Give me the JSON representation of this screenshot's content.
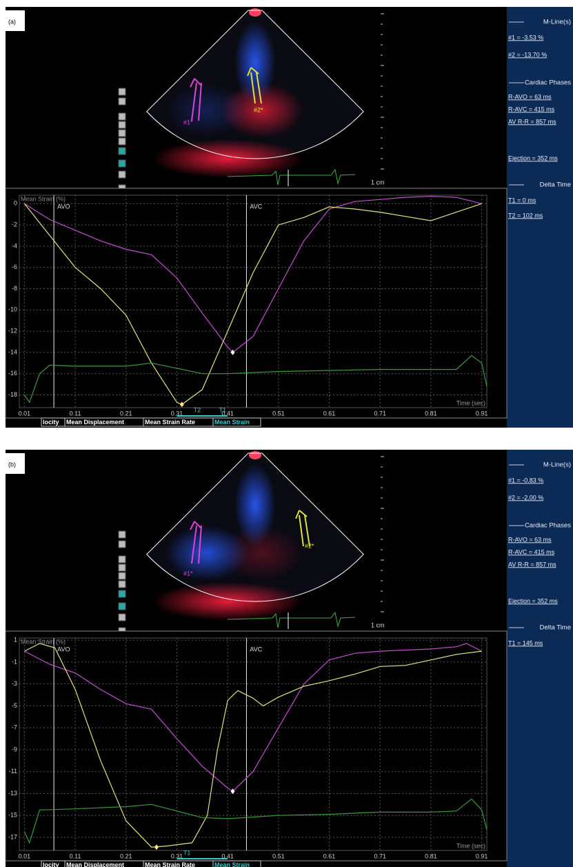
{
  "panels": [
    {
      "label": "(a)",
      "scale_label": "1 cm",
      "arrow_labels": [
        "#1*",
        "#2*"
      ],
      "tabs": [
        "locity",
        "Mean Displacement",
        "Mean Strain Rate",
        "Mean Strain"
      ],
      "sidebar": [
        {
          "heading": "M-Line(s)",
          "items": [
            "#1 = -3.53 %",
            "#2 = -13.70 %"
          ]
        },
        {
          "heading": "Cardiac Phases",
          "items": [
            "R-AVO = 63 ms",
            "R-AVC = 415 ms",
            "AV R-R = 857 ms",
            "Ejection = 352 ms"
          ]
        },
        {
          "heading": "Delta Time",
          "items": [
            "T1 = 0 ms",
            "T2 = 102 ms"
          ]
        }
      ]
    },
    {
      "label": "(b)",
      "scale_label": "1 cm",
      "arrow_labels": [
        "#1*",
        "#2*"
      ],
      "tabs": [
        "locity",
        "Mean Displacement",
        "Mean Strain Rate",
        "Mean Strain"
      ],
      "sidebar": [
        {
          "heading": "M-Line(s)",
          "items": [
            "#1 = -0.83 %",
            "#2 = -2.00 %"
          ]
        },
        {
          "heading": "Cardiac Phases",
          "items": [
            "R-AVO = 63 ms",
            "R-AVC = 415 ms",
            "AV R-R = 857 ms",
            "Ejection = 352 ms"
          ]
        },
        {
          "heading": "Delta Time",
          "items": [
            "T1 = 145 ms"
          ]
        }
      ]
    }
  ],
  "chart_data": [
    {
      "type": "line",
      "ylabel": "Mean Strain (%)",
      "xlabel": "Time (sec)",
      "xlim": [
        0,
        0.92
      ],
      "ylim": [
        -19.2,
        0.8
      ],
      "xticks": [
        0.01,
        0.11,
        0.21,
        0.31,
        0.41,
        0.51,
        0.61,
        0.71,
        0.81,
        0.91
      ],
      "yticks": [
        0,
        -2,
        -4,
        -6,
        -8,
        -10,
        -12,
        -14,
        -16,
        -18
      ],
      "grid": true,
      "events": [
        {
          "label": "AVO",
          "x": 0.068
        },
        {
          "label": "AVC",
          "x": 0.447
        }
      ],
      "cursors": [
        {
          "label": "T2",
          "x": 0.35
        },
        {
          "label": "T1",
          "x": 0.4
        }
      ],
      "series": [
        {
          "color": "#c24fcf",
          "x": [
            0.01,
            0.06,
            0.11,
            0.16,
            0.21,
            0.26,
            0.31,
            0.36,
            0.41,
            0.42,
            0.46,
            0.51,
            0.56,
            0.61,
            0.66,
            0.71,
            0.76,
            0.81,
            0.86,
            0.91
          ],
          "values": [
            0,
            -1.5,
            -2.5,
            -3.5,
            -4.3,
            -4.8,
            -7,
            -10.3,
            -13.5,
            -14,
            -12.5,
            -8,
            -3.5,
            -0.5,
            0.2,
            0.4,
            0.6,
            0.7,
            0.6,
            0
          ]
        },
        {
          "color": "#e4e47c",
          "x": [
            0.01,
            0.06,
            0.11,
            0.16,
            0.21,
            0.26,
            0.31,
            0.32,
            0.36,
            0.41,
            0.46,
            0.51,
            0.56,
            0.61,
            0.66,
            0.71,
            0.76,
            0.81,
            0.86,
            0.91
          ],
          "values": [
            0,
            -3,
            -6,
            -8,
            -10.5,
            -15,
            -18.7,
            -18.9,
            -17.5,
            -12,
            -6.5,
            -2,
            -1.3,
            -0.3,
            -0.5,
            -0.8,
            -1.2,
            -1.6,
            -0.8,
            0
          ]
        },
        {
          "color": "#3d9a3d",
          "x": [
            0.01,
            0.02,
            0.04,
            0.06,
            0.11,
            0.21,
            0.26,
            0.31,
            0.36,
            0.41,
            0.51,
            0.61,
            0.71,
            0.81,
            0.86,
            0.89,
            0.91,
            0.92
          ],
          "values": [
            -18,
            -18.7,
            -16,
            -15.2,
            -15.3,
            -15.3,
            -15,
            -15.5,
            -16,
            -16,
            -15.8,
            -15.7,
            -15.6,
            -15.6,
            -15.6,
            -14.3,
            -15,
            -17.2
          ]
        }
      ],
      "markers": [
        {
          "x": 0.42,
          "y": -14
        },
        {
          "x": 0.32,
          "y": -18.9
        }
      ]
    },
    {
      "type": "line",
      "ylabel": "Mean Strain (%)",
      "xlabel": "Time (sec)",
      "xlim": [
        0,
        0.92
      ],
      "ylim": [
        -18.2,
        1.2
      ],
      "xticks": [
        0.01,
        0.11,
        0.21,
        0.31,
        0.41,
        0.51,
        0.61,
        0.71,
        0.81,
        0.91
      ],
      "yticks": [
        1,
        -1,
        -3,
        -5,
        -7,
        -9,
        -11,
        -13,
        -15,
        -17
      ],
      "grid": true,
      "events": [
        {
          "label": "AVO",
          "x": 0.068
        },
        {
          "label": "AVC",
          "x": 0.447
        }
      ],
      "cursors": [
        {
          "label": "T1",
          "x": 0.33
        }
      ],
      "series": [
        {
          "color": "#c24fcf",
          "x": [
            0.01,
            0.06,
            0.11,
            0.16,
            0.21,
            0.26,
            0.31,
            0.36,
            0.41,
            0.42,
            0.46,
            0.51,
            0.56,
            0.61,
            0.66,
            0.71,
            0.76,
            0.81,
            0.86,
            0.88,
            0.91
          ],
          "values": [
            0,
            -1.2,
            -2,
            -3.5,
            -4.8,
            -5.3,
            -8,
            -10.5,
            -12.5,
            -12.8,
            -11,
            -7,
            -3,
            -0.8,
            -0.2,
            0,
            0.1,
            0.2,
            0.4,
            0.7,
            0
          ]
        },
        {
          "color": "#e4e47c",
          "x": [
            0.01,
            0.04,
            0.07,
            0.11,
            0.16,
            0.21,
            0.26,
            0.29,
            0.34,
            0.37,
            0.39,
            0.41,
            0.43,
            0.46,
            0.48,
            0.51,
            0.56,
            0.61,
            0.66,
            0.71,
            0.76,
            0.81,
            0.86,
            0.91
          ],
          "values": [
            0,
            0.7,
            0.3,
            -3.5,
            -10,
            -15.5,
            -17.9,
            -17.8,
            -17.5,
            -15,
            -9,
            -4.5,
            -3.6,
            -4.3,
            -5,
            -4.2,
            -3.2,
            -2.7,
            -2.1,
            -1.4,
            -1.3,
            -0.8,
            -0.3,
            0
          ]
        },
        {
          "color": "#3d9a3d",
          "x": [
            0.01,
            0.02,
            0.04,
            0.11,
            0.21,
            0.26,
            0.31,
            0.36,
            0.41,
            0.51,
            0.61,
            0.71,
            0.81,
            0.86,
            0.89,
            0.91,
            0.92
          ],
          "values": [
            -16.5,
            -17.5,
            -14.5,
            -14.4,
            -14.2,
            -14,
            -14.6,
            -15.2,
            -15.3,
            -15,
            -14.9,
            -14.7,
            -14.7,
            -14.6,
            -13.5,
            -14.5,
            -16.3
          ]
        }
      ],
      "markers": [
        {
          "x": 0.42,
          "y": -12.8
        },
        {
          "x": 0.27,
          "y": -17.9
        }
      ]
    }
  ]
}
